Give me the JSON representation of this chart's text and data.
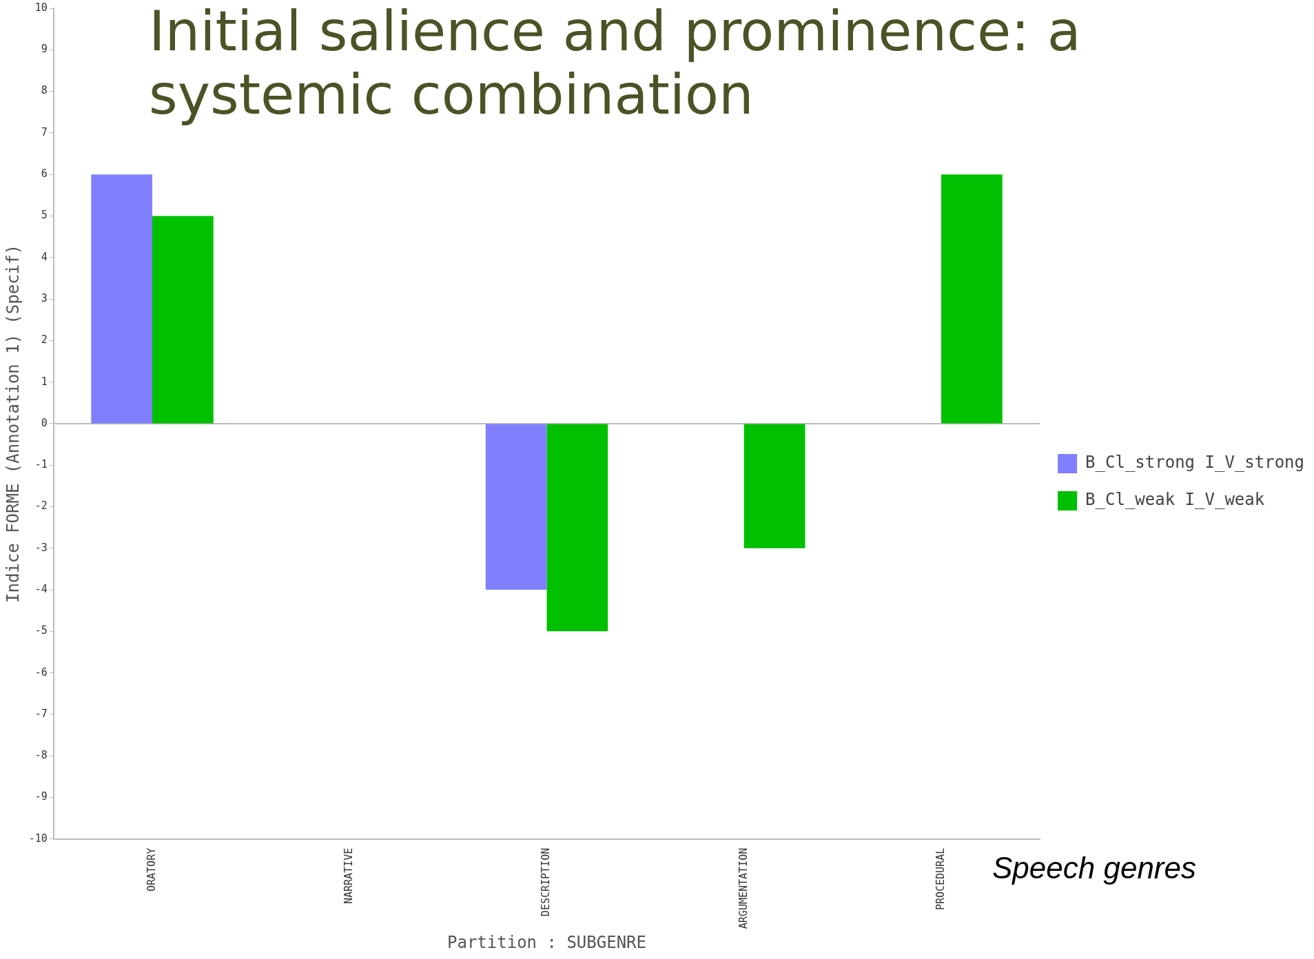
{
  "chart_data": {
    "type": "bar",
    "title": "Initial salience and prominence: a systemic combination",
    "categories": [
      "ORATORY",
      "NARRATIVE",
      "DESCRIPTION",
      "ARGUMENTATION",
      "PROCEDURAL"
    ],
    "series": [
      {
        "name": "B_Cl_strong I_V_strong",
        "color": "#8080ff",
        "values": [
          6,
          0,
          -4,
          0,
          0
        ]
      },
      {
        "name": "B_Cl_weak I_V_weak",
        "color": "#00c000",
        "values": [
          5,
          0,
          -5,
          -3,
          6
        ]
      }
    ],
    "xlabel": "Partition : SUBGENRE",
    "ylabel": "Indice FORME (Annotation 1) (Specif)",
    "ylim": [
      -10,
      10
    ],
    "yticks": [
      -10,
      -9,
      -8,
      -7,
      -6,
      -5,
      -4,
      -3,
      -2,
      -1,
      0,
      1,
      2,
      3,
      4,
      5,
      6,
      7,
      8,
      9,
      10
    ],
    "ref_lines": [
      {
        "axis": "y",
        "value": 0,
        "color": "#bbbbbb"
      }
    ],
    "annotations": [
      "Speech genres"
    ],
    "grid": false,
    "legend": "right"
  }
}
